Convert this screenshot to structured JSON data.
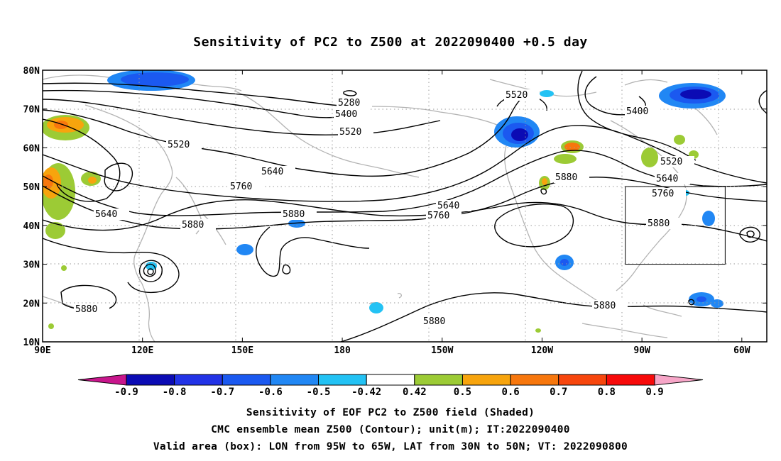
{
  "title": "Sensitivity of PC2 to Z500 at 2022090400 +0.5 day",
  "lat_ticks": [
    {
      "value": 80,
      "label": "80N"
    },
    {
      "value": 70,
      "label": "70N"
    },
    {
      "value": 60,
      "label": "60N"
    },
    {
      "value": 50,
      "label": "50N"
    },
    {
      "value": 40,
      "label": "40N"
    },
    {
      "value": 30,
      "label": "30N"
    },
    {
      "value": 20,
      "label": "20N"
    },
    {
      "value": 10,
      "label": "10N"
    }
  ],
  "lon_ticks": [
    {
      "value": 90,
      "label": "90E"
    },
    {
      "value": 120,
      "label": "120E"
    },
    {
      "value": 150,
      "label": "150E"
    },
    {
      "value": 180,
      "label": "180"
    },
    {
      "value": 210,
      "label": "150W"
    },
    {
      "value": 240,
      "label": "120W"
    },
    {
      "value": 270,
      "label": "90W"
    },
    {
      "value": 300,
      "label": "60W"
    }
  ],
  "colorbar": {
    "labels": [
      "-0.9",
      "-0.8",
      "-0.7",
      "-0.6",
      "-0.5",
      "-0.42",
      "0.42",
      "0.5",
      "0.6",
      "0.7",
      "0.8",
      "0.9"
    ],
    "colors": [
      "#c8168c",
      "#0b0bb4",
      "#2233e6",
      "#1b59f0",
      "#2187f4",
      "#23c2f4",
      "#ffffff",
      "#9ccb35",
      "#f7a40d",
      "#f7770d",
      "#f7460d",
      "#f70a0a",
      "#f7a6c8"
    ]
  },
  "contour_labels": [
    "5280",
    "5400",
    "5520",
    "5640",
    "5760",
    "5880"
  ],
  "valid_box": {
    "lon_min": 265,
    "lon_max": 295,
    "lat_min": 30,
    "lat_max": 50
  },
  "captions": {
    "line1": "Sensitivity of EOF PC2 to Z500 field (Shaded)",
    "line2": "CMC ensemble mean Z500 (Contour); unit(m); IT:2022090400",
    "line3": "Valid area (box): LON from 95W to 65W, LAT from 30N to 50N; VT: 2022090800"
  }
}
